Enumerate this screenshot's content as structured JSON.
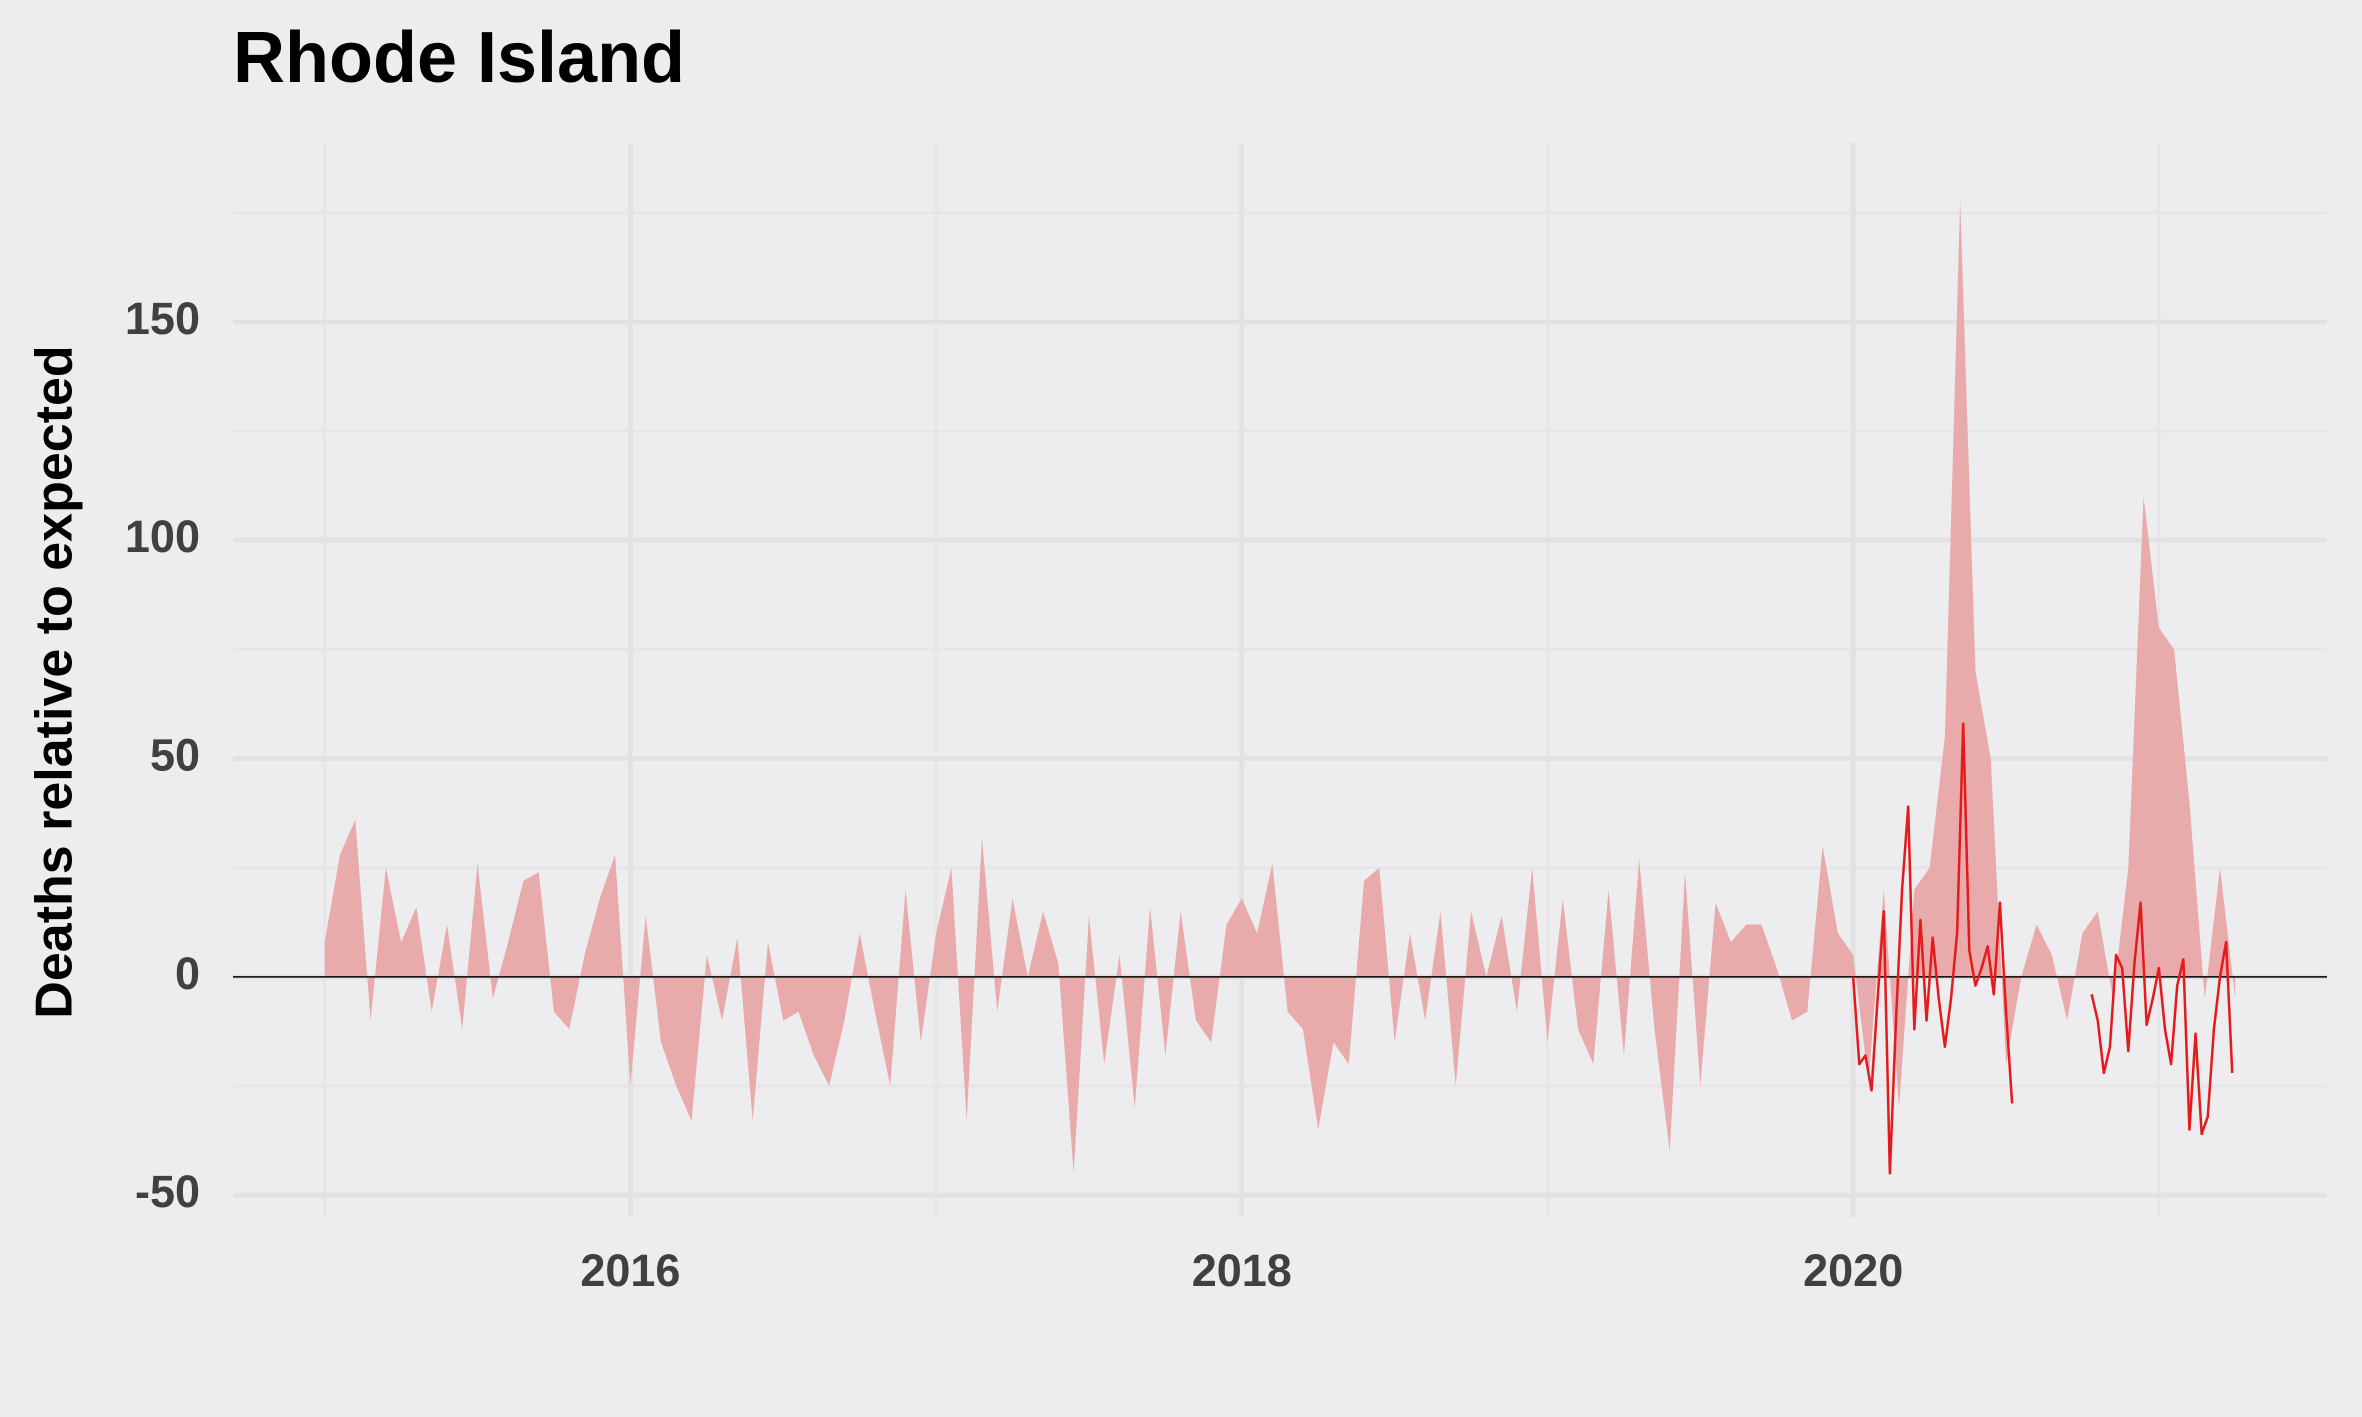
{
  "chart_data": {
    "type": "area",
    "title": "Rhode Island",
    "y_label": "Deaths relative to expected",
    "xlim": [
      2014.7,
      2021.55
    ],
    "ylim": [
      -55,
      191
    ],
    "xticks": [
      2016,
      2018,
      2020
    ],
    "xticks_minor": [
      2015,
      2017,
      2019,
      2021
    ],
    "yticks": [
      -50,
      0,
      50,
      100,
      150
    ],
    "yticks_minor": [
      -25,
      25,
      75,
      125,
      175
    ],
    "grid": true,
    "series": [
      {
        "type": "area",
        "color": "#e8aaab",
        "x": [
          2015,
          2015.05,
          2015.1,
          2015.15,
          2015.2,
          2015.25,
          2015.3,
          2015.35,
          2015.4,
          2015.45,
          2015.5,
          2015.55,
          2015.6,
          2015.65,
          2015.7,
          2015.75,
          2015.8,
          2015.85,
          2015.9,
          2015.95,
          2016,
          2016.05,
          2016.1,
          2016.15,
          2016.2,
          2016.25,
          2016.3,
          2016.35,
          2016.4,
          2016.45,
          2016.5,
          2016.55,
          2016.6,
          2016.65,
          2016.7,
          2016.75,
          2016.8,
          2016.85,
          2016.9,
          2016.95,
          2017,
          2017.05,
          2017.1,
          2017.15,
          2017.2,
          2017.25,
          2017.3,
          2017.35,
          2017.4,
          2017.45,
          2017.5,
          2017.55,
          2017.6,
          2017.65,
          2017.7,
          2017.75,
          2017.8,
          2017.85,
          2017.9,
          2017.95,
          2018,
          2018.05,
          2018.1,
          2018.15,
          2018.2,
          2018.25,
          2018.3,
          2018.35,
          2018.4,
          2018.45,
          2018.5,
          2018.55,
          2018.6,
          2018.65,
          2018.7,
          2018.75,
          2018.8,
          2018.85,
          2018.9,
          2018.95,
          2019,
          2019.05,
          2019.1,
          2019.15,
          2019.2,
          2019.25,
          2019.3,
          2019.35,
          2019.4,
          2019.45,
          2019.5,
          2019.55,
          2019.6,
          2019.65,
          2019.7,
          2019.75,
          2019.8,
          2019.85,
          2019.9,
          2019.95,
          2020,
          2020.05,
          2020.1,
          2020.15,
          2020.2,
          2020.25,
          2020.3,
          2020.35,
          2020.4,
          2020.45,
          2020.5,
          2020.55,
          2020.6,
          2020.65,
          2020.7,
          2020.75,
          2020.8,
          2020.85,
          2020.9,
          2020.95,
          2021,
          2021.05,
          2021.1,
          2021.15,
          2021.2,
          2021.25
        ],
        "values": [
          8,
          28,
          36,
          -10,
          25,
          8,
          16,
          -8,
          12,
          -12,
          26,
          -5,
          8,
          22,
          24,
          -8,
          -12,
          5,
          18,
          28,
          -25,
          14,
          -15,
          -25,
          -33,
          5,
          -10,
          9,
          -33,
          8,
          -10,
          -8,
          -18,
          -25,
          -10,
          10,
          -8,
          -25,
          20,
          -15,
          10,
          25,
          -33,
          32,
          -8,
          18,
          0,
          15,
          3,
          -45,
          14,
          -20,
          5,
          -30,
          16,
          -18,
          15,
          -10,
          -15,
          12,
          18,
          10,
          26,
          -8,
          -12,
          -35,
          -15,
          -20,
          22,
          25,
          -15,
          10,
          -10,
          15,
          -25,
          15,
          0,
          14,
          -8,
          25,
          -15,
          18,
          -12,
          -20,
          20,
          -18,
          27,
          -12,
          -40,
          24,
          -25,
          17,
          8,
          12,
          12,
          2,
          -10,
          -8,
          30,
          10,
          5,
          -24,
          20,
          -30,
          20,
          25,
          55,
          178,
          70,
          50,
          -20,
          0,
          12,
          5,
          -10,
          10,
          15,
          -5,
          25,
          110,
          80,
          75,
          40,
          -5,
          25,
          -5
        ]
      },
      {
        "type": "line",
        "color": "#e41a1c",
        "x": [
          2020,
          2020.02,
          2020.04,
          2020.06,
          2020.08,
          2020.1,
          2020.12,
          2020.14,
          2020.16,
          2020.18,
          2020.2,
          2020.22,
          2020.24,
          2020.26,
          2020.28,
          2020.3,
          2020.32,
          2020.34,
          2020.36,
          2020.38,
          2020.4,
          2020.42,
          2020.44,
          2020.46,
          2020.48,
          2020.5,
          2020.52,
          2020.65,
          2020.78,
          2020.8,
          2020.82,
          2020.84,
          2020.86,
          2020.88,
          2020.9,
          2020.92,
          2020.94,
          2020.96,
          2020.98,
          2021,
          2021.02,
          2021.04,
          2021.06,
          2021.08,
          2021.1,
          2021.12,
          2021.14,
          2021.16,
          2021.18,
          2021.2,
          2021.22,
          2021.24
        ],
        "values": [
          0,
          -20,
          -18,
          -26,
          -5,
          15,
          -45,
          -10,
          20,
          39,
          -12,
          13,
          -10,
          9,
          -5,
          -16,
          -5,
          10,
          58,
          6,
          -2,
          2,
          7,
          -4,
          17,
          -8,
          -29,
          null,
          -4,
          -10,
          -22,
          -16,
          5,
          2,
          -17,
          3,
          17,
          -11,
          -5,
          2,
          -12,
          -20,
          -2,
          4,
          -35,
          -13,
          -36,
          -32,
          -12,
          0,
          8,
          -22
        ]
      }
    ]
  }
}
